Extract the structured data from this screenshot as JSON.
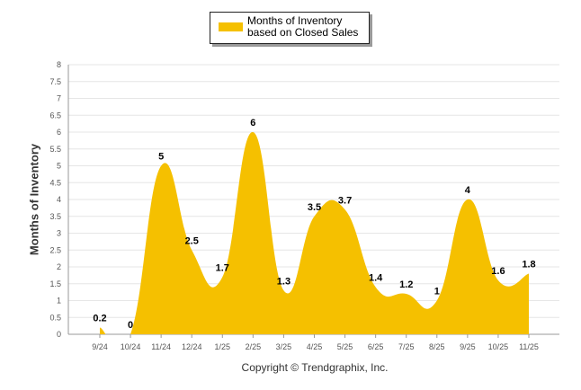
{
  "chart_data": {
    "type": "area",
    "categories": [
      "9/24",
      "10/24",
      "11/24",
      "12/24",
      "1/25",
      "2/25",
      "3/25",
      "4/25",
      "5/25",
      "6/25",
      "7/25",
      "8/25",
      "9/25",
      "10/25",
      "11/25"
    ],
    "series": [
      {
        "name": "Months of Inventory based on Closed Sales",
        "values": [
          0.2,
          0,
          5,
          2.5,
          1.7,
          6,
          1.3,
          3.5,
          3.7,
          1.4,
          1.2,
          1,
          4,
          1.6,
          1.8
        ]
      }
    ],
    "data_labels": [
      "0.2",
      "0",
      "5",
      "2.5",
      "1.7",
      "6",
      "1.3",
      "3.5",
      "3.7",
      "1.4",
      "1.2",
      "1",
      "4",
      "1.6",
      "1.8"
    ],
    "y_ticks": [
      "0",
      "0.5",
      "1",
      "1.5",
      "2",
      "2.5",
      "3",
      "3.5",
      "4",
      "4.5",
      "5",
      "5.5",
      "6",
      "6.5",
      "7",
      "7.5",
      "8"
    ],
    "ylim": [
      0,
      8
    ],
    "ylabel": "Months of Inventory",
    "xlabel": "",
    "grid": true,
    "legend_position": "top",
    "colors": {
      "fill": "#f5c000",
      "grid": "#e6e6e6",
      "axis": "#999999"
    }
  },
  "legend": {
    "label": "Months of Inventory based on Closed Sales"
  },
  "footer": {
    "copyright": "Copyright © Trendgraphix, Inc."
  }
}
